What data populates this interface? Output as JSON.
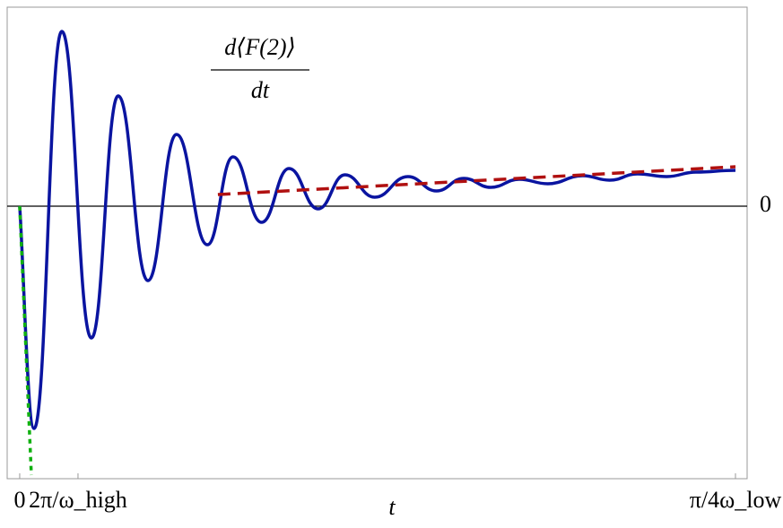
{
  "chart_data": {
    "type": "line",
    "annotation": {
      "numerator": "d⟨F(2)⟩",
      "denominator": "dt"
    },
    "x_label": "t",
    "xlim": [
      -0.215,
      12.48
    ],
    "ylim": [
      -3.04,
      2.22
    ],
    "xticks": [
      0,
      {
        "value": 1,
        "label": "2π/ω_high"
      },
      {
        "value": 12.28,
        "label": "π/4ω_low"
      }
    ],
    "yticks": [
      0
    ],
    "zero_line": true,
    "series": [
      {
        "color": "#0a14a0",
        "style": "solid",
        "smooth": true,
        "x": [
          0,
          0.246,
          0.723,
          1.23,
          1.69,
          2.2,
          2.69,
          3.22,
          3.66,
          4.15,
          4.62,
          5.12,
          5.58,
          6.09,
          6.66,
          7.15,
          7.62,
          8.08,
          8.57,
          9.06,
          9.66,
          10.12,
          10.6,
          11.1,
          11.6,
          12.28
        ],
        "values": [
          0,
          -2.48,
          1.95,
          -1.47,
          1.23,
          -0.83,
          0.8,
          -0.43,
          0.55,
          -0.18,
          0.42,
          -0.03,
          0.35,
          0.1,
          0.33,
          0.17,
          0.31,
          0.21,
          0.3,
          0.25,
          0.34,
          0.29,
          0.36,
          0.33,
          0.38,
          0.4
        ]
      },
      {
        "color": "#b01010",
        "style": "dashed",
        "smooth": false,
        "x": [
          3.4,
          12.28
        ],
        "values": [
          0.13,
          0.44
        ]
      },
      {
        "color": "#10b010",
        "style": "dotted",
        "smooth": false,
        "x": [
          0,
          0.2
        ],
        "values": [
          0,
          -3.0
        ]
      }
    ]
  }
}
